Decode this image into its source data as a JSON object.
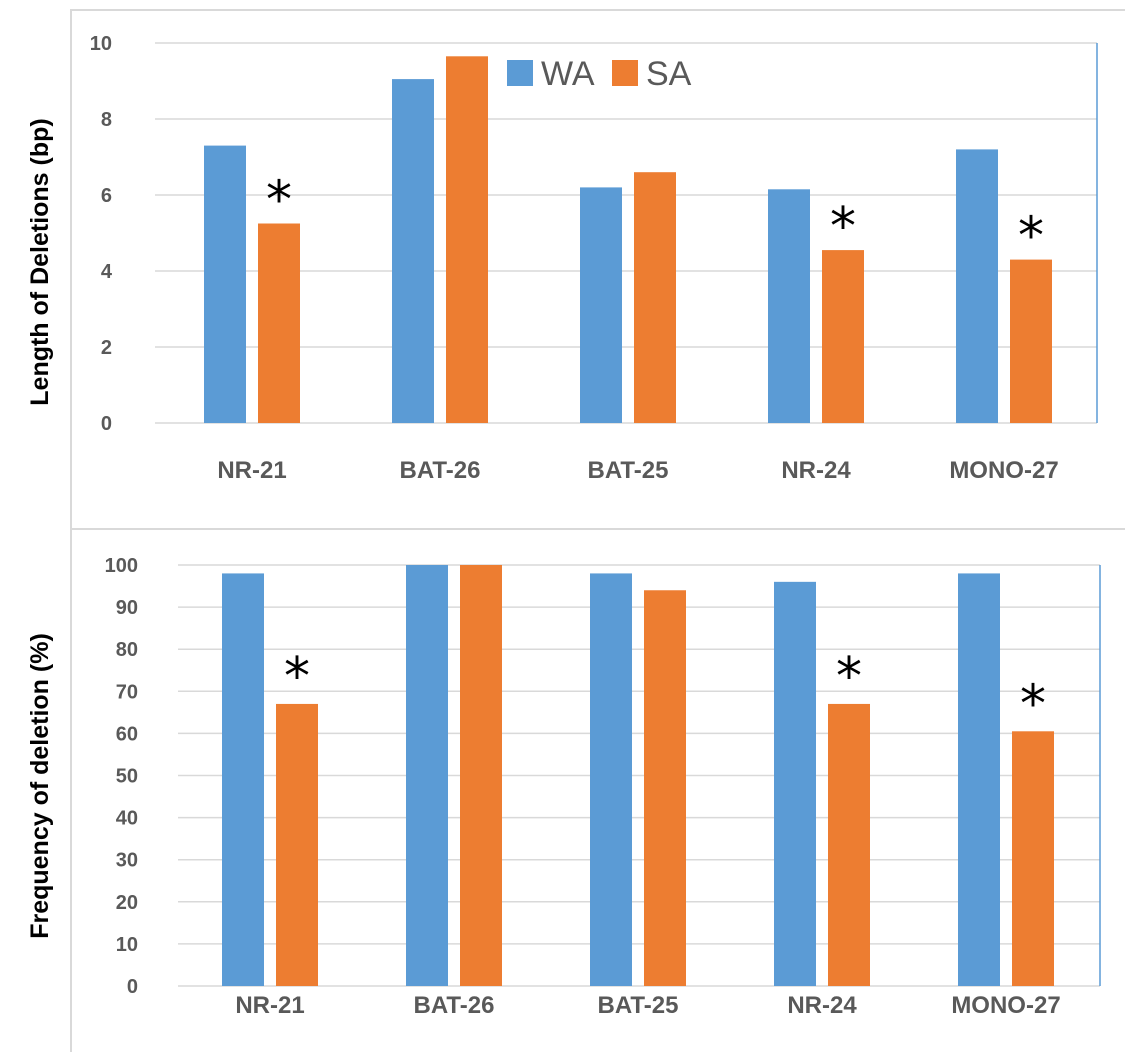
{
  "colors": {
    "WA": "#5B9BD5",
    "SA": "#ED7D31",
    "grid": "#D9D9D9",
    "frame": "#D9D9D9",
    "axis_text": "#595959"
  },
  "chart_data": [
    {
      "type": "bar",
      "ylabel": "Length of Deletions (bp)",
      "categories": [
        "NR-21",
        "BAT-26",
        "BAT-25",
        "NR-24",
        "MONO-27"
      ],
      "series": [
        {
          "name": "WA",
          "values": [
            7.3,
            9.05,
            6.2,
            6.15,
            7.2
          ]
        },
        {
          "name": "SA",
          "values": [
            5.25,
            9.65,
            6.6,
            4.55,
            4.3
          ]
        }
      ],
      "ylim": [
        0,
        10
      ],
      "yticks": [
        "0",
        "2",
        "4",
        "6",
        "8",
        "10"
      ],
      "grid": true,
      "legend": "top-center",
      "annotations": [
        {
          "category": "NR-21",
          "series": "SA",
          "text": "*"
        },
        {
          "category": "NR-24",
          "series": "SA",
          "text": "*"
        },
        {
          "category": "MONO-27",
          "series": "SA",
          "text": "*"
        }
      ]
    },
    {
      "type": "bar",
      "ylabel": "Frequency of deletion (%)",
      "categories": [
        "NR-21",
        "BAT-26",
        "BAT-25",
        "NR-24",
        "MONO-27"
      ],
      "series": [
        {
          "name": "WA",
          "values": [
            98,
            100,
            98,
            96,
            98
          ]
        },
        {
          "name": "SA",
          "values": [
            67,
            100,
            94,
            67,
            60.5
          ]
        }
      ],
      "ylim": [
        0,
        100
      ],
      "yticks": [
        "0",
        "10",
        "20",
        "30",
        "40",
        "50",
        "60",
        "70",
        "80",
        "90",
        "100"
      ],
      "grid": true,
      "legend": "none",
      "annotations": [
        {
          "category": "NR-21",
          "series": "SA",
          "text": "*"
        },
        {
          "category": "NR-24",
          "series": "SA",
          "text": "*"
        },
        {
          "category": "MONO-27",
          "series": "SA",
          "text": "*"
        }
      ]
    }
  ]
}
